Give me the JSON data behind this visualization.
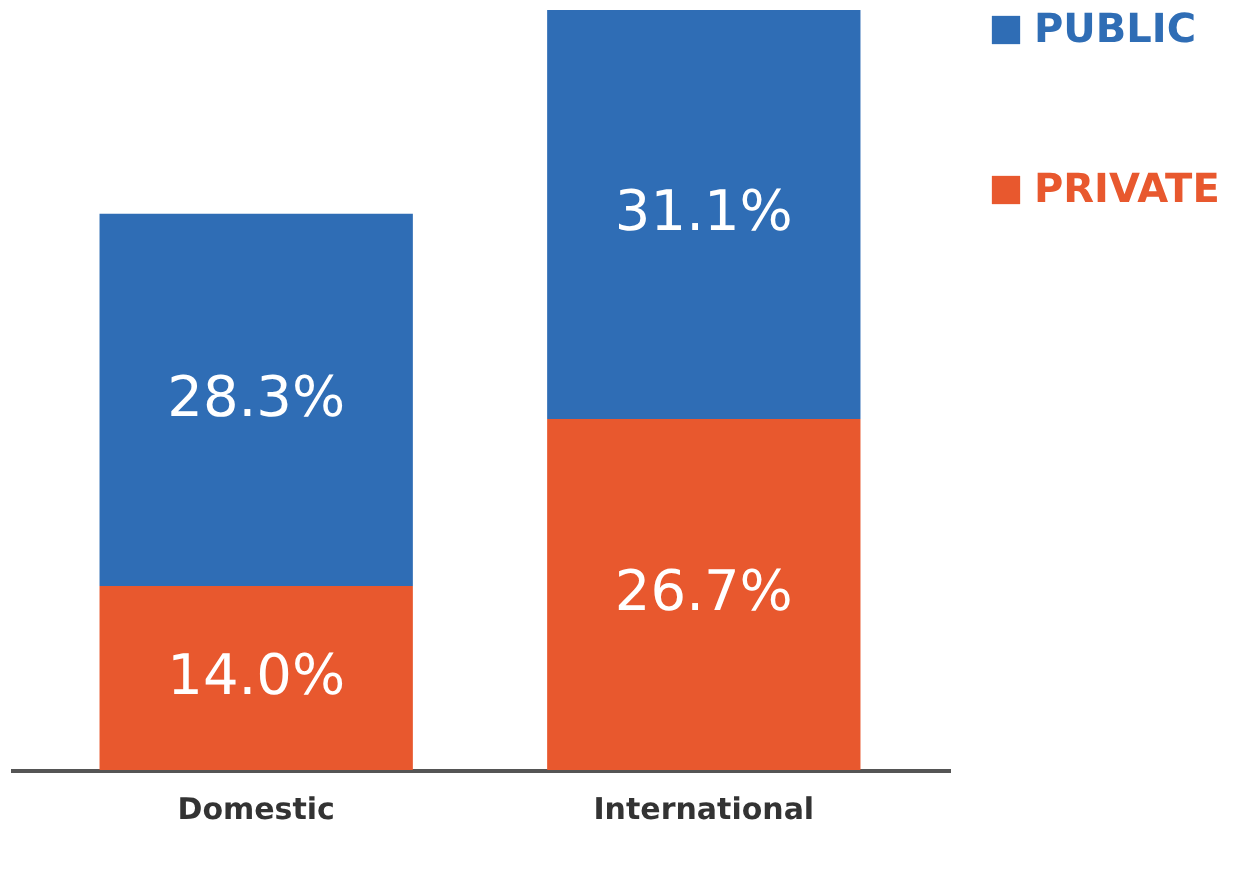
{
  "chart_data": {
    "type": "bar",
    "stacked": true,
    "categories": [
      "Domestic",
      "International"
    ],
    "series": [
      {
        "name": "PRIVATE",
        "color": "#e8582e",
        "values": [
          14.0,
          26.7
        ],
        "value_labels": [
          "14.0%",
          "26.7%"
        ]
      },
      {
        "name": "PUBLIC",
        "color": "#2f6db5",
        "values": [
          28.3,
          31.1
        ],
        "value_labels": [
          "28.3%",
          "31.1%"
        ]
      }
    ],
    "legend": "right",
    "grid": false,
    "tick_labels": "x"
  }
}
